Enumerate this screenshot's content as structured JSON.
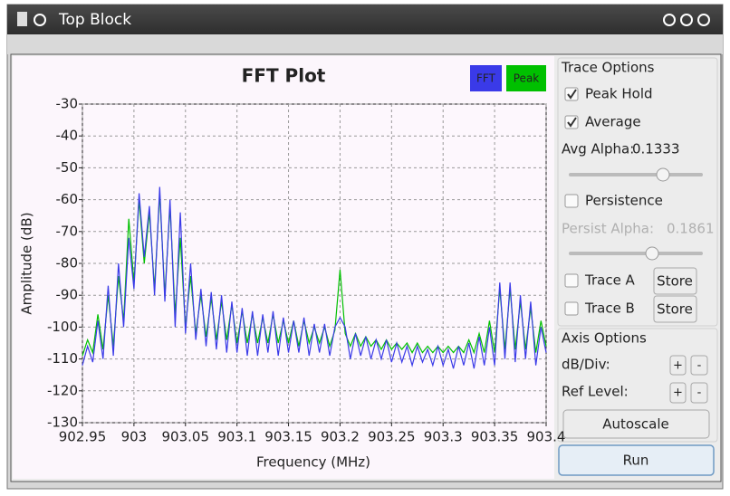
{
  "window": {
    "title": "Top Block"
  },
  "chart_data": {
    "type": "line",
    "title": "FFT Plot",
    "x_label": "Frequency (MHz)",
    "y_label": "Amplitude (dB)",
    "x": [
      902.95,
      902.955,
      902.96,
      902.965,
      902.97,
      902.975,
      902.98,
      902.985,
      902.99,
      902.995,
      903,
      903.005,
      903.01,
      903.015,
      903.02,
      903.025,
      903.03,
      903.035,
      903.04,
      903.045,
      903.05,
      903.055,
      903.06,
      903.065,
      903.07,
      903.075,
      903.08,
      903.085,
      903.09,
      903.095,
      903.1,
      903.105,
      903.11,
      903.115,
      903.12,
      903.125,
      903.13,
      903.135,
      903.14,
      903.145,
      903.15,
      903.155,
      903.16,
      903.165,
      903.17,
      903.175,
      903.18,
      903.185,
      903.19,
      903.195,
      903.2,
      903.205,
      903.21,
      903.215,
      903.22,
      903.225,
      903.23,
      903.235,
      903.24,
      903.245,
      903.25,
      903.255,
      903.26,
      903.265,
      903.27,
      903.275,
      903.28,
      903.285,
      903.29,
      903.295,
      903.3,
      903.305,
      903.31,
      903.315,
      903.32,
      903.325,
      903.33,
      903.335,
      903.34,
      903.345,
      903.35,
      903.355,
      903.36,
      903.365,
      903.37,
      903.375,
      903.38,
      903.385,
      903.39,
      903.395,
      903.4
    ],
    "series": [
      {
        "name": "FFT",
        "color": "#3a3ae8",
        "values": [
          -112,
          -106,
          -111,
          -98,
          -110,
          -87,
          -109,
          -80,
          -100,
          -72,
          -88,
          -58,
          -78,
          -62,
          -90,
          -56,
          -92,
          -60,
          -100,
          -64,
          -102,
          -80,
          -104,
          -88,
          -106,
          -89,
          -107,
          -90,
          -108,
          -92,
          -108,
          -94,
          -109,
          -95,
          -109,
          -96,
          -108,
          -95,
          -109,
          -97,
          -108,
          -98,
          -108,
          -97,
          -109,
          -99,
          -108,
          -99,
          -109,
          -100,
          -97,
          -100,
          -110,
          -102,
          -109,
          -103,
          -110,
          -104,
          -110,
          -104,
          -111,
          -105,
          -111,
          -106,
          -112,
          -106,
          -111,
          -107,
          -112,
          -106,
          -112,
          -107,
          -113,
          -106,
          -112,
          -105,
          -113,
          -103,
          -112,
          -100,
          -112,
          -86,
          -110,
          -86,
          -111,
          -90,
          -110,
          -92,
          -112,
          -100,
          -108
        ]
      },
      {
        "name": "Peak",
        "color": "#00c000",
        "values": [
          -109,
          -104,
          -108,
          -96,
          -107,
          -90,
          -106,
          -84,
          -98,
          -66,
          -86,
          -60,
          -80,
          -64,
          -88,
          -58,
          -90,
          -62,
          -96,
          -72,
          -100,
          -84,
          -102,
          -90,
          -103,
          -91,
          -104,
          -92,
          -104,
          -93,
          -105,
          -95,
          -105,
          -96,
          -105,
          -97,
          -105,
          -96,
          -105,
          -98,
          -105,
          -98,
          -106,
          -98,
          -105,
          -100,
          -105,
          -100,
          -106,
          -101,
          -82,
          -102,
          -106,
          -102,
          -106,
          -103,
          -106,
          -104,
          -107,
          -104,
          -107,
          -105,
          -107,
          -105,
          -108,
          -105,
          -108,
          -106,
          -108,
          -106,
          -108,
          -106,
          -108,
          -106,
          -108,
          -104,
          -108,
          -102,
          -108,
          -98,
          -108,
          -88,
          -107,
          -88,
          -107,
          -92,
          -107,
          -94,
          -108,
          -98,
          -106
        ]
      }
    ],
    "xlim": [
      902.95,
      903.4
    ],
    "xticks": [
      902.95,
      903,
      903.05,
      903.1,
      903.15,
      903.2,
      903.25,
      903.3,
      903.35,
      903.4
    ],
    "ylim": [
      -130,
      -30
    ],
    "yticks": [
      -130,
      -120,
      -110,
      -100,
      -90,
      -80,
      -70,
      -60,
      -50,
      -40,
      -30
    ],
    "grid": true,
    "legend": "upper right"
  },
  "panel": {
    "trace_options": {
      "title": "Trace Options",
      "peak_hold": {
        "label": "Peak Hold",
        "checked": true
      },
      "average": {
        "label": "Average",
        "checked": true
      },
      "avg_alpha": {
        "label": "Avg Alpha:",
        "value": 0.1333
      },
      "persistence": {
        "label": "Persistence",
        "checked": false
      },
      "persist_alpha": {
        "label": "Persist Alpha:",
        "value": 0.1861
      },
      "trace_a": {
        "label": "Trace A",
        "checked": false,
        "button": "Store"
      },
      "trace_b": {
        "label": "Trace B",
        "checked": false,
        "button": "Store"
      }
    },
    "axis_options": {
      "title": "Axis Options",
      "db_div": {
        "label": "dB/Div:",
        "plus": "+",
        "minus": "-"
      },
      "ref_level": {
        "label": "Ref Level:",
        "plus": "+",
        "minus": "-"
      },
      "autoscale": "Autoscale"
    },
    "run": "Run"
  }
}
